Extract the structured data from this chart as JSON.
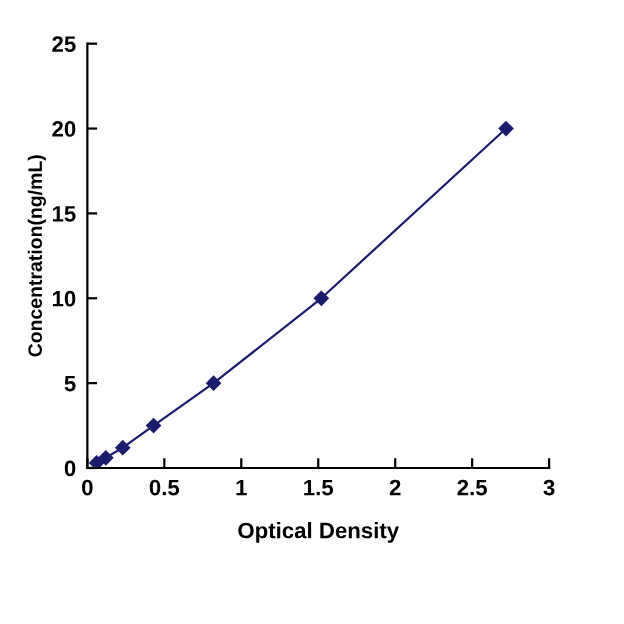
{
  "chart_data": {
    "type": "line",
    "xlabel": "Optical Density",
    "ylabel": "Concentration(ng/mL)",
    "x": [
      0.06,
      0.12,
      0.23,
      0.43,
      0.82,
      1.52,
      2.72
    ],
    "series": [
      {
        "color": "#1c1c6e",
        "values": [
          0.3,
          0.6,
          1.2,
          2.5,
          5,
          10,
          20
        ]
      }
    ],
    "xlim": [
      0,
      3
    ],
    "xticks": [
      0,
      0.5,
      1,
      1.5,
      2,
      2.5,
      3
    ],
    "ylim": [
      0,
      25
    ],
    "yticks": [
      0,
      5,
      10,
      15,
      20,
      25
    ],
    "marker": "diamond",
    "line_style": "solid",
    "grid": false,
    "legend": false
  }
}
